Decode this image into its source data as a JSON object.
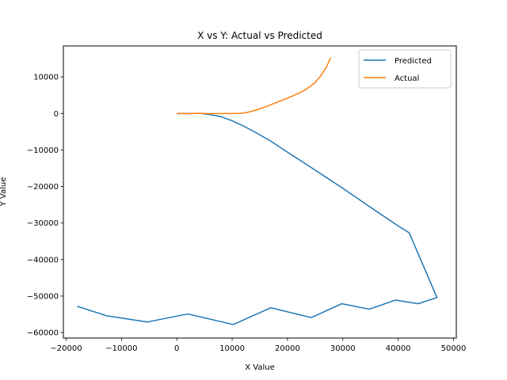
{
  "chart_data": {
    "type": "line",
    "title": "X vs Y: Actual vs Predicted",
    "xlabel": "X Value",
    "ylabel": "Y Value",
    "xlim": [
      -20500,
      50500
    ],
    "ylim": [
      -61500,
      18500
    ],
    "xticks": [
      -20000,
      -10000,
      0,
      10000,
      20000,
      30000,
      40000,
      50000
    ],
    "yticks": [
      -60000,
      -50000,
      -40000,
      -30000,
      -20000,
      -10000,
      0,
      10000
    ],
    "grid": false,
    "legend_position": "top-right",
    "series": [
      {
        "name": "Predicted",
        "color": "#1f77b4",
        "points": [
          [
            0,
            0
          ],
          [
            2000,
            0
          ],
          [
            4000,
            50
          ],
          [
            6000,
            -300
          ],
          [
            8000,
            -900
          ],
          [
            10000,
            -2000
          ],
          [
            12000,
            -3400
          ],
          [
            14000,
            -5000
          ],
          [
            17000,
            -7600
          ],
          [
            20000,
            -10600
          ],
          [
            25000,
            -15500
          ],
          [
            30000,
            -20500
          ],
          [
            35000,
            -25700
          ],
          [
            40000,
            -30800
          ],
          [
            42000,
            -32700
          ],
          [
            47000,
            -50400
          ],
          [
            43600,
            -52100
          ],
          [
            39500,
            -51100
          ],
          [
            34800,
            -53600
          ],
          [
            29800,
            -52100
          ],
          [
            24300,
            -55900
          ],
          [
            17000,
            -53200
          ],
          [
            10200,
            -57800
          ],
          [
            2000,
            -54900
          ],
          [
            -5300,
            -57100
          ],
          [
            -12700,
            -55400
          ],
          [
            -18000,
            -52800
          ]
        ]
      },
      {
        "name": "Actual",
        "color": "#ff7f0e",
        "points": [
          [
            0,
            0
          ],
          [
            2000,
            -50
          ],
          [
            4000,
            50
          ],
          [
            6000,
            -50
          ],
          [
            8000,
            0
          ],
          [
            10000,
            0
          ],
          [
            11000,
            0
          ],
          [
            12000,
            100
          ],
          [
            13000,
            400
          ],
          [
            14000,
            800
          ],
          [
            16000,
            1800
          ],
          [
            18000,
            3000
          ],
          [
            20000,
            4200
          ],
          [
            22000,
            5500
          ],
          [
            23000,
            6300
          ],
          [
            24000,
            7300
          ],
          [
            25000,
            8500
          ],
          [
            26000,
            10300
          ],
          [
            27000,
            12600
          ],
          [
            27800,
            15300
          ]
        ]
      }
    ]
  }
}
